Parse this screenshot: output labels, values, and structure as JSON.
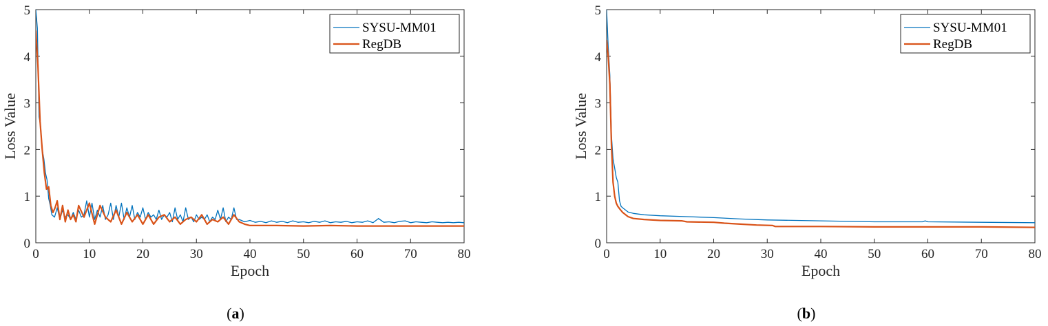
{
  "chart_data": [
    {
      "type": "line",
      "panel_label": "a",
      "xlabel": "Epoch",
      "ylabel": "Loss Value",
      "xlim": [
        0,
        80
      ],
      "ylim": [
        0,
        5
      ],
      "xticks": [
        0,
        10,
        20,
        30,
        40,
        50,
        60,
        70,
        80
      ],
      "yticks": [
        0,
        1,
        2,
        3,
        4,
        5
      ],
      "legend_position": "top-right",
      "series": [
        {
          "name": "SYSU-MM01",
          "color": "#0072BD",
          "x": [
            0,
            0.3,
            0.6,
            0.9,
            1.2,
            1.5,
            1.8,
            2.1,
            2.4,
            2.7,
            3.0,
            3.5,
            4.0,
            4.5,
            5.0,
            5.5,
            6.0,
            6.5,
            7.0,
            7.5,
            8.0,
            8.5,
            9.0,
            9.5,
            10.0,
            10.5,
            11.0,
            11.5,
            12.0,
            12.5,
            13.0,
            13.5,
            14.0,
            14.5,
            15.0,
            15.5,
            16.0,
            16.5,
            17.0,
            17.5,
            18.0,
            18.5,
            19.0,
            19.5,
            20.0,
            20.5,
            21.0,
            21.5,
            22.0,
            22.5,
            23.0,
            23.5,
            24.0,
            24.5,
            25.0,
            25.5,
            26.0,
            26.5,
            27.0,
            27.5,
            28.0,
            28.5,
            29.0,
            29.5,
            30.0,
            30.5,
            31.0,
            31.5,
            32.0,
            32.5,
            33.0,
            33.5,
            34.0,
            34.5,
            35.0,
            35.5,
            36.0,
            36.5,
            37.0,
            37.5,
            38.0,
            39.0,
            40.0,
            41.0,
            42.0,
            43.0,
            44.0,
            45.0,
            46.0,
            47.0,
            48.0,
            49.0,
            50.0,
            51.0,
            52.0,
            53.0,
            54.0,
            55.0,
            56.0,
            57.0,
            58.0,
            59.0,
            60.0,
            61.0,
            62.0,
            63.0,
            64.0,
            65.0,
            66.0,
            67.0,
            68.0,
            69.0,
            70.0,
            71.0,
            72.0,
            73.0,
            74.0,
            75.0,
            76.0,
            77.0,
            78.0,
            79.0,
            80.0
          ],
          "values": [
            5.0,
            4.6,
            2.7,
            2.5,
            2.0,
            1.8,
            1.5,
            1.35,
            0.95,
            0.8,
            0.6,
            0.55,
            0.75,
            0.5,
            0.7,
            0.55,
            0.6,
            0.5,
            0.65,
            0.5,
            0.7,
            0.55,
            0.6,
            0.9,
            0.55,
            0.85,
            0.5,
            0.7,
            0.55,
            0.8,
            0.5,
            0.6,
            0.85,
            0.5,
            0.8,
            0.55,
            0.85,
            0.5,
            0.75,
            0.55,
            0.8,
            0.5,
            0.65,
            0.55,
            0.75,
            0.5,
            0.65,
            0.55,
            0.6,
            0.5,
            0.7,
            0.5,
            0.6,
            0.55,
            0.65,
            0.45,
            0.75,
            0.5,
            0.6,
            0.45,
            0.75,
            0.5,
            0.55,
            0.45,
            0.6,
            0.5,
            0.55,
            0.5,
            0.6,
            0.45,
            0.55,
            0.5,
            0.7,
            0.5,
            0.75,
            0.45,
            0.55,
            0.5,
            0.75,
            0.5,
            0.5,
            0.45,
            0.48,
            0.44,
            0.46,
            0.43,
            0.47,
            0.44,
            0.46,
            0.43,
            0.47,
            0.44,
            0.45,
            0.43,
            0.46,
            0.44,
            0.47,
            0.43,
            0.45,
            0.44,
            0.46,
            0.43,
            0.45,
            0.44,
            0.47,
            0.43,
            0.52,
            0.44,
            0.45,
            0.43,
            0.46,
            0.47,
            0.43,
            0.45,
            0.44,
            0.43,
            0.45,
            0.44,
            0.43,
            0.44,
            0.43,
            0.44,
            0.43
          ]
        },
        {
          "name": "RegDB",
          "color": "#D95319",
          "x": [
            0,
            0.4,
            0.8,
            1.2,
            1.6,
            2.0,
            2.4,
            2.8,
            3.2,
            3.6,
            4.0,
            4.5,
            5.0,
            5.5,
            6.0,
            6.5,
            7.0,
            7.5,
            8.0,
            9.0,
            10.0,
            11.0,
            12.0,
            13.0,
            14.0,
            15.0,
            16.0,
            17.0,
            18.0,
            19.0,
            20.0,
            21.0,
            22.0,
            23.0,
            24.0,
            25.0,
            26.0,
            27.0,
            28.0,
            29.0,
            30.0,
            31.0,
            32.0,
            33.0,
            34.0,
            35.0,
            36.0,
            37.0,
            38.0,
            39.0,
            40.0,
            45.0,
            50.0,
            55.0,
            60.0,
            65.0,
            70.0,
            75.0,
            80.0
          ],
          "values": [
            4.55,
            3.8,
            2.6,
            2.0,
            1.5,
            1.15,
            1.2,
            0.8,
            0.65,
            0.75,
            0.9,
            0.5,
            0.8,
            0.45,
            0.7,
            0.5,
            0.6,
            0.45,
            0.8,
            0.55,
            0.85,
            0.4,
            0.8,
            0.55,
            0.45,
            0.7,
            0.4,
            0.65,
            0.45,
            0.6,
            0.4,
            0.6,
            0.4,
            0.55,
            0.6,
            0.45,
            0.55,
            0.4,
            0.5,
            0.55,
            0.45,
            0.6,
            0.4,
            0.5,
            0.45,
            0.55,
            0.4,
            0.6,
            0.45,
            0.4,
            0.37,
            0.37,
            0.36,
            0.37,
            0.36,
            0.36,
            0.36,
            0.36,
            0.36
          ]
        }
      ]
    },
    {
      "type": "line",
      "panel_label": "b",
      "xlabel": "Epoch",
      "ylabel": "Loss Value",
      "xlim": [
        0,
        80
      ],
      "ylim": [
        0,
        5
      ],
      "xticks": [
        0,
        10,
        20,
        30,
        40,
        50,
        60,
        70,
        80
      ],
      "yticks": [
        0,
        1,
        2,
        3,
        4,
        5
      ],
      "legend_position": "top-right",
      "series": [
        {
          "name": "SYSU-MM01",
          "color": "#0072BD",
          "x": [
            0,
            0.3,
            0.6,
            0.9,
            1.2,
            1.5,
            1.8,
            2.1,
            2.4,
            2.7,
            3.0,
            4.0,
            5.0,
            7.0,
            10.0,
            15.0,
            20.0,
            25.0,
            30.0,
            40.0,
            50.0,
            59.0,
            59.5,
            60.0,
            70.0,
            80.0
          ],
          "values": [
            5.0,
            4.2,
            3.6,
            2.3,
            1.8,
            1.6,
            1.4,
            1.3,
            0.9,
            0.78,
            0.75,
            0.66,
            0.63,
            0.6,
            0.58,
            0.56,
            0.54,
            0.51,
            0.49,
            0.47,
            0.45,
            0.45,
            0.47,
            0.45,
            0.44,
            0.43
          ]
        },
        {
          "name": "RegDB",
          "color": "#D95319",
          "x": [
            0,
            0.3,
            0.6,
            0.9,
            1.2,
            1.5,
            1.8,
            2.1,
            2.5,
            3.0,
            4.0,
            5.0,
            7.0,
            10.0,
            14.0,
            15.0,
            20.0,
            22.0,
            25.0,
            28.0,
            31.0,
            31.5,
            40.0,
            50.0,
            60.0,
            70.0,
            80.0
          ],
          "values": [
            4.35,
            4.0,
            3.4,
            2.1,
            1.3,
            1.0,
            0.85,
            0.78,
            0.72,
            0.65,
            0.56,
            0.52,
            0.5,
            0.48,
            0.47,
            0.45,
            0.44,
            0.42,
            0.4,
            0.38,
            0.37,
            0.35,
            0.35,
            0.34,
            0.34,
            0.34,
            0.33
          ]
        }
      ]
    }
  ]
}
